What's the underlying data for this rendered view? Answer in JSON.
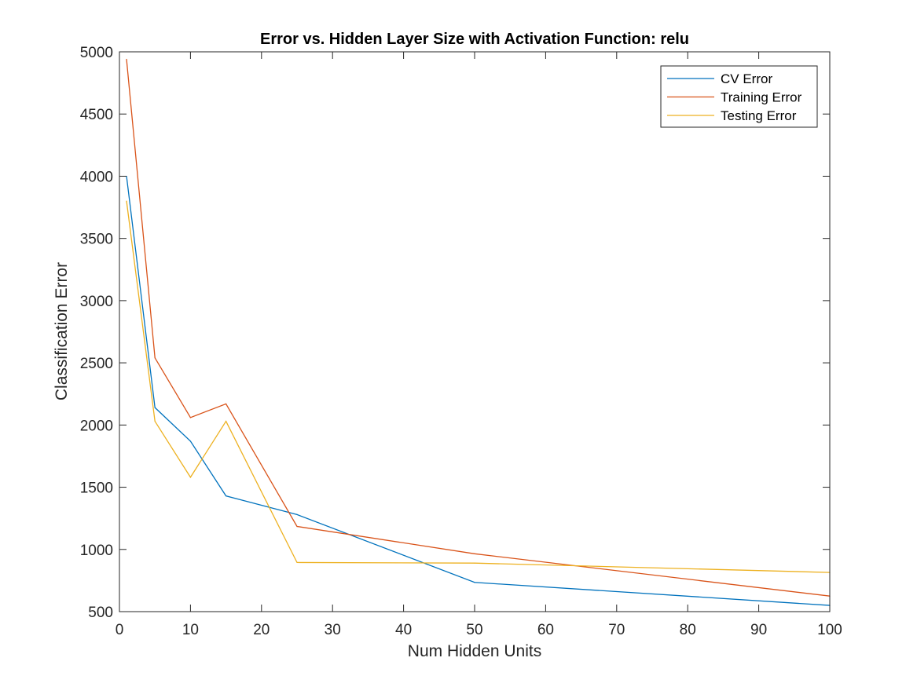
{
  "chart_data": {
    "type": "line",
    "title": "Error vs. Hidden Layer Size with Activation Function: relu",
    "xlabel": "Num Hidden Units",
    "ylabel": "Classification Error",
    "xlim": [
      0,
      100
    ],
    "ylim": [
      500,
      5000
    ],
    "xticks": [
      0,
      10,
      20,
      30,
      40,
      50,
      60,
      70,
      80,
      90,
      100
    ],
    "yticks": [
      500,
      1000,
      1500,
      2000,
      2500,
      3000,
      3500,
      4000,
      4500,
      5000
    ],
    "grid": false,
    "legend_location": "top-right",
    "series": [
      {
        "name": "CV Error",
        "color": "#0072BD",
        "x": [
          1,
          5,
          10,
          15,
          25,
          50,
          100
        ],
        "y": [
          4000,
          2140,
          1870,
          1430,
          1280,
          735,
          550
        ]
      },
      {
        "name": "Training Error",
        "color": "#D95319",
        "x": [
          1,
          5,
          10,
          15,
          25,
          50,
          100
        ],
        "y": [
          4940,
          2540,
          2060,
          2170,
          1185,
          965,
          625
        ]
      },
      {
        "name": "Testing Error",
        "color": "#EDB120",
        "x": [
          1,
          5,
          10,
          15,
          25,
          50,
          100
        ],
        "y": [
          3800,
          2030,
          1580,
          2030,
          895,
          890,
          815
        ]
      }
    ]
  }
}
